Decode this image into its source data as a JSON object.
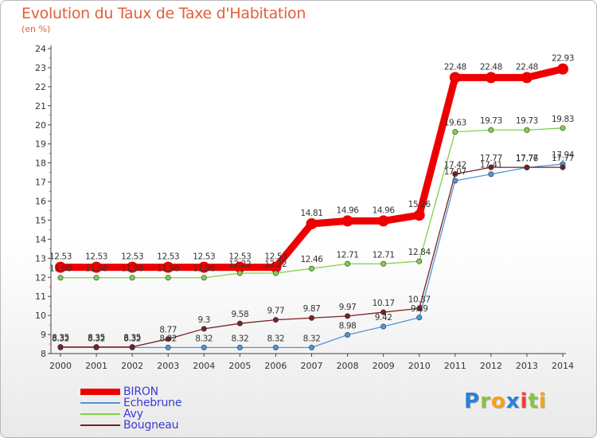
{
  "title": "Evolution du Taux de Taxe d'Habitation",
  "subtitle": "(en %)",
  "logo": {
    "letters": [
      {
        "ch": "P",
        "color": "#2a7fd4"
      },
      {
        "ch": "r",
        "color": "#8ac43f"
      },
      {
        "ch": "o",
        "color": "#f5a21b"
      },
      {
        "ch": "x",
        "color": "#2a7fd4"
      },
      {
        "ch": "i",
        "color": "#e8413c"
      },
      {
        "ch": "t",
        "color": "#8ac43f"
      },
      {
        "ch": "i",
        "color": "#f5a21b"
      }
    ]
  },
  "chart_data": {
    "type": "line",
    "title": "Evolution du Taux de Taxe d'Habitation",
    "ylabel": "(en %)",
    "xlabel": "",
    "x": [
      "2000",
      "2001",
      "2002",
      "2003",
      "2004",
      "2005",
      "2006",
      "2007",
      "2008",
      "2009",
      "2010",
      "2011",
      "2012",
      "2013",
      "2014"
    ],
    "ylim": [
      8,
      24
    ],
    "yticks": [
      8,
      9,
      10,
      11,
      12,
      13,
      14,
      15,
      16,
      17,
      18,
      19,
      20,
      21,
      22,
      23,
      24
    ],
    "grid": false,
    "legend_position": "bottom-left",
    "series": [
      {
        "name": "BIRON",
        "color": "#ee0000",
        "values": [
          12.53,
          12.53,
          12.53,
          12.53,
          12.53,
          12.53,
          12.53,
          14.81,
          14.96,
          14.96,
          15.26,
          22.48,
          22.48,
          22.48,
          22.93
        ],
        "labels": [
          "12.53",
          "12.53",
          "12.53",
          "12.53",
          "12.53",
          "12.53",
          "12.53",
          "14.81",
          "14.96",
          "14.96",
          "15.26",
          "22.48",
          "22.48",
          "22.48",
          "22.93"
        ]
      },
      {
        "name": "Echebrune",
        "color": "#4f96d8",
        "values": [
          8.32,
          8.32,
          8.32,
          8.32,
          8.32,
          8.32,
          8.32,
          8.32,
          8.98,
          9.42,
          9.89,
          17.07,
          17.41,
          17.76,
          17.94
        ],
        "labels": [
          "8.32",
          "8.32",
          "8.32",
          "8.32",
          "8.32",
          "8.32",
          "8.32",
          "8.32",
          "8.98",
          "9.42",
          "9.89",
          "17.07",
          "17.41",
          "17.76",
          "17.94"
        ]
      },
      {
        "name": "Avy",
        "color": "#80d04a",
        "values": [
          11.98,
          11.98,
          11.98,
          11.98,
          11.98,
          12.22,
          12.22,
          12.46,
          12.71,
          12.71,
          12.84,
          19.63,
          19.73,
          19.73,
          19.83
        ],
        "labels": [
          "11.98",
          "11.98",
          "11.98",
          "11.98",
          "11.98",
          "12.22",
          "12.22",
          "12.46",
          "12.71",
          "12.71",
          "12.84",
          "19.63",
          "19.73",
          "19.73",
          "19.83"
        ]
      },
      {
        "name": "Bougneau",
        "color": "#7a1f22",
        "values": [
          8.35,
          8.35,
          8.35,
          8.77,
          9.3,
          9.58,
          9.77,
          9.87,
          9.97,
          10.17,
          10.37,
          17.42,
          17.77,
          17.77,
          17.77
        ],
        "labels": [
          "8.35",
          "8.35",
          "8.35",
          "8.77",
          "9.3",
          "9.58",
          "9.77",
          "9.87",
          "9.97",
          "10.17",
          "10.37",
          "17.42",
          "17.77",
          "17.77",
          "17.77"
        ]
      }
    ]
  }
}
